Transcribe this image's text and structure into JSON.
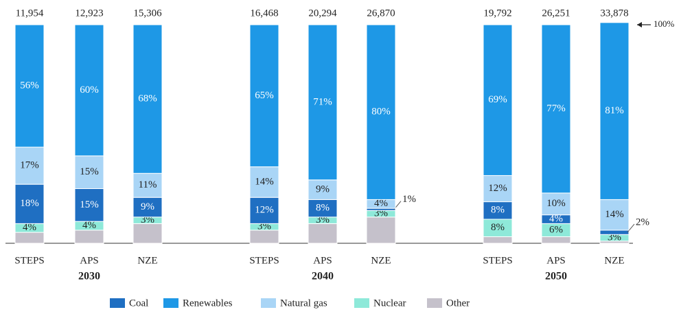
{
  "chart_data": {
    "type": "stacked_bar",
    "categories": [
      "STEPS",
      "APS",
      "NZE",
      "STEPS",
      "APS",
      "NZE",
      "STEPS",
      "APS",
      "NZE"
    ],
    "groups": [
      "2030",
      "2040",
      "2050"
    ],
    "totals": {
      "values": [
        11954,
        12923,
        15306,
        16468,
        20294,
        26870,
        19792,
        26251,
        33878
      ],
      "value_labels": [
        "11,954",
        "12,923",
        "15,306",
        "16,468",
        "20,294",
        "26,870",
        "19,792",
        "26,251",
        "33,878"
      ]
    },
    "annotation": "100%",
    "ylim": [
      0,
      100
    ],
    "series": [
      {
        "name": "Coal",
        "color": "#1f6fc2",
        "values": [
          18,
          15,
          9,
          12,
          8,
          1,
          8,
          4,
          2
        ],
        "value_labels": [
          "18%",
          "15%",
          "9%",
          "12%",
          "8%",
          "1%",
          "8%",
          "4%",
          "2%"
        ]
      },
      {
        "name": "Renewables",
        "color": "#1e98e6",
        "values": [
          56,
          60,
          68,
          65,
          71,
          80,
          69,
          77,
          81
        ],
        "value_labels": [
          "56%",
          "60%",
          "68%",
          "65%",
          "71%",
          "80%",
          "69%",
          "77%",
          "81%"
        ]
      },
      {
        "name": "Natural gas",
        "color": "#a9d5f6",
        "values": [
          17,
          15,
          11,
          14,
          9,
          4,
          12,
          10,
          14
        ],
        "value_labels": [
          "17%",
          "15%",
          "11%",
          "14%",
          "9%",
          "4%",
          "12%",
          "10%",
          "14%"
        ]
      },
      {
        "name": "Nuclear",
        "color": "#8ee9d9",
        "values": [
          4,
          4,
          3,
          3,
          3,
          3,
          8,
          6,
          3
        ],
        "value_labels": [
          "4%",
          "4%",
          "3%",
          "3%",
          "3%",
          "3%",
          "8%",
          "6%",
          "3%"
        ]
      },
      {
        "name": "Other",
        "color": "#c5c1cb",
        "values": [
          5,
          6,
          9,
          6,
          9,
          12,
          3,
          3,
          1
        ]
      }
    ]
  }
}
